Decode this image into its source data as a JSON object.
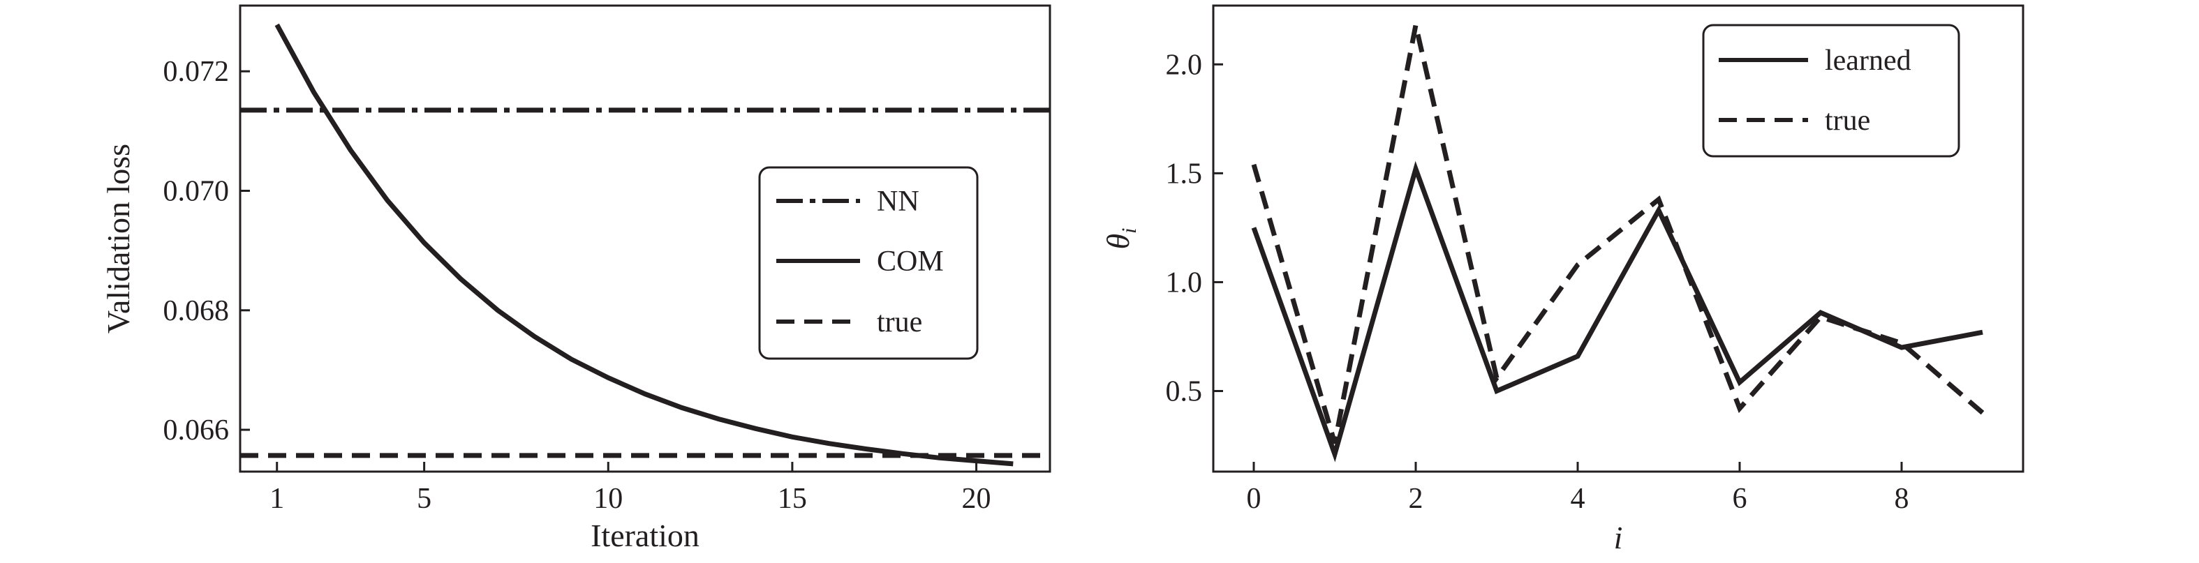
{
  "chart_data": [
    {
      "type": "line",
      "xlabel": "Iteration",
      "ylabel": "Validation loss",
      "xlim": [
        0,
        22
      ],
      "ylim": [
        0.0653,
        0.0731
      ],
      "xticks": [
        1,
        5,
        10,
        15,
        20
      ],
      "yticks": [
        0.066,
        0.068,
        0.07,
        0.072
      ],
      "xtick_labels": [
        "1",
        "5",
        "10",
        "15",
        "20"
      ],
      "ytick_labels": [
        "0.066",
        "0.068",
        "0.070",
        "0.072"
      ],
      "legend_position": "center-right",
      "series": [
        {
          "name": "NN",
          "style": "dashdot",
          "x": [
            0,
            22
          ],
          "y": [
            0.07135,
            0.07135
          ]
        },
        {
          "name": "COM",
          "style": "solid",
          "x": [
            1,
            2,
            3,
            4,
            5,
            6,
            7,
            8,
            9,
            10,
            11,
            12,
            13,
            14,
            15,
            16,
            17,
            18,
            19,
            20,
            21
          ],
          "y": [
            0.07278,
            0.07165,
            0.07068,
            0.06984,
            0.06913,
            0.06852,
            0.068,
            0.06756,
            0.06718,
            0.06687,
            0.0666,
            0.06637,
            0.06618,
            0.06602,
            0.06588,
            0.06577,
            0.06568,
            0.0656,
            0.06553,
            0.06548,
            0.06543
          ]
        },
        {
          "name": "true",
          "style": "dashed",
          "x": [
            0,
            22
          ],
          "y": [
            0.06557,
            0.06557
          ]
        }
      ]
    },
    {
      "type": "line",
      "xlabel": "i",
      "ylabel": "θi",
      "xlim": [
        -0.5,
        9.5
      ],
      "ylim": [
        0.13,
        2.27
      ],
      "xticks": [
        0,
        2,
        4,
        6,
        8
      ],
      "yticks": [
        0.5,
        1.0,
        1.5,
        2.0
      ],
      "xtick_labels": [
        "0",
        "2",
        "4",
        "6",
        "8"
      ],
      "ytick_labels": [
        "0.5",
        "1.0",
        "1.5",
        "2.0"
      ],
      "legend_position": "top-right",
      "series": [
        {
          "name": "learned",
          "style": "solid",
          "x": [
            0,
            1,
            2,
            3,
            4,
            5,
            6,
            7,
            8,
            9
          ],
          "y": [
            1.25,
            0.21,
            1.52,
            0.5,
            0.66,
            1.33,
            0.54,
            0.86,
            0.7,
            0.77
          ]
        },
        {
          "name": "true",
          "style": "dashed",
          "x": [
            0,
            1,
            2,
            3,
            4,
            5,
            6,
            7,
            8,
            9
          ],
          "y": [
            1.54,
            0.26,
            2.18,
            0.56,
            1.08,
            1.38,
            0.42,
            0.84,
            0.72,
            0.4
          ]
        }
      ]
    }
  ]
}
